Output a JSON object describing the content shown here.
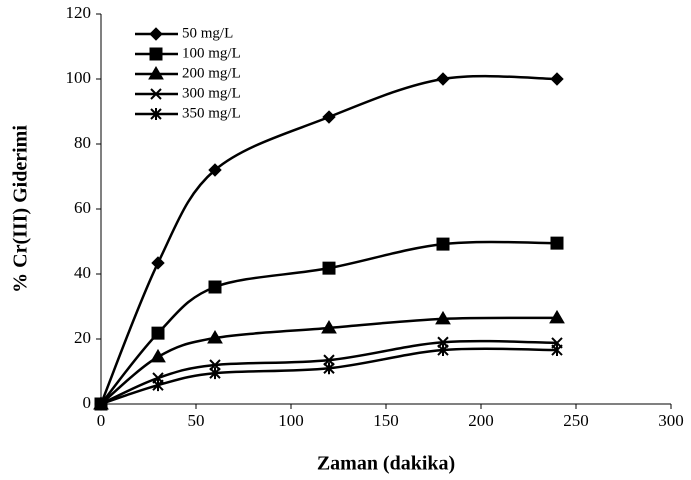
{
  "chart_data": {
    "type": "line",
    "xlabel": "Zaman (dakika)",
    "ylabel": "% Cr(III) Giderimi",
    "x": [
      0,
      30,
      60,
      120,
      180,
      240
    ],
    "series": [
      {
        "name": "50 mg/L",
        "color": "#000000",
        "marker": "diamond",
        "values": [
          0,
          43.4,
          72,
          88.3,
          100,
          100
        ]
      },
      {
        "name": "100 mg/L",
        "color": "#000000",
        "marker": "square",
        "values": [
          0,
          21.8,
          36,
          41.8,
          49.2,
          49.5
        ]
      },
      {
        "name": "200 mg/L",
        "color": "#000000",
        "marker": "triangle",
        "values": [
          0,
          14.5,
          20.3,
          23.4,
          26.2,
          26.5
        ]
      },
      {
        "name": "300 mg/L",
        "color": "#000000",
        "marker": "x",
        "values": [
          0,
          8,
          12,
          13.5,
          19,
          18.8
        ]
      },
      {
        "name": "350 mg/L",
        "color": "#000000",
        "marker": "star",
        "values": [
          0,
          5.8,
          9.5,
          11,
          16.6,
          16.6
        ]
      }
    ],
    "xlim": [
      0,
      300
    ],
    "xticks": [
      0,
      50,
      100,
      150,
      200,
      250,
      300
    ],
    "ylim": [
      0,
      120
    ],
    "yticks": [
      0,
      20,
      40,
      60,
      80,
      100,
      120
    ],
    "smooth": true,
    "legend": "upper left"
  }
}
